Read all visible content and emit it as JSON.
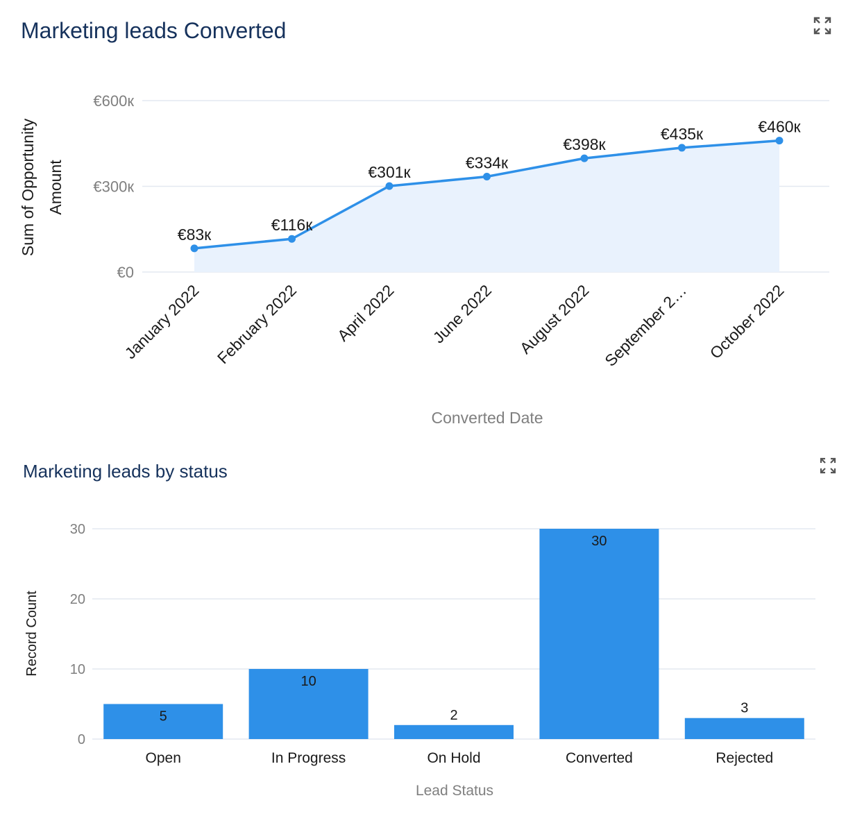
{
  "colors": {
    "title": "#16325c",
    "series": "#2e90e8",
    "area": "#e9f2fd",
    "grid": "#e3e8f0",
    "axis_text": "#7f7f7f",
    "label_text": "#1a1a1a"
  },
  "icons": {
    "expand": "expand-icon"
  },
  "chart_data": [
    {
      "type": "area",
      "title": "Marketing leads Converted",
      "xlabel": "Converted Date",
      "ylabel": "Sum of Opportunity Amount",
      "categories": [
        "January 2022",
        "February 2022",
        "April 2022",
        "June 2022",
        "August 2022",
        "September 2…",
        "October 2022"
      ],
      "values": [
        83,
        116,
        301,
        334,
        398,
        435,
        460
      ],
      "value_unit": "thousand EUR",
      "data_labels": [
        "€83к",
        "€116к",
        "€301к",
        "€334к",
        "€398к",
        "€435к",
        "€460к"
      ],
      "yticks": [
        0,
        300,
        600
      ],
      "ytick_labels": [
        "€0",
        "€300к",
        "€600к"
      ],
      "ylim": [
        0,
        600
      ],
      "grid": true,
      "legend": "none"
    },
    {
      "type": "bar",
      "title": "Marketing leads by status",
      "xlabel": "Lead Status",
      "ylabel": "Record Count",
      "categories": [
        "Open",
        "In Progress",
        "On Hold",
        "Converted",
        "Rejected"
      ],
      "values": [
        5,
        10,
        2,
        30,
        3
      ],
      "data_labels": [
        "5",
        "10",
        "2",
        "30",
        "3"
      ],
      "yticks": [
        0,
        10,
        20,
        30
      ],
      "ytick_labels": [
        "0",
        "10",
        "20",
        "30"
      ],
      "ylim": [
        0,
        30
      ],
      "grid": true,
      "legend": "none"
    }
  ]
}
